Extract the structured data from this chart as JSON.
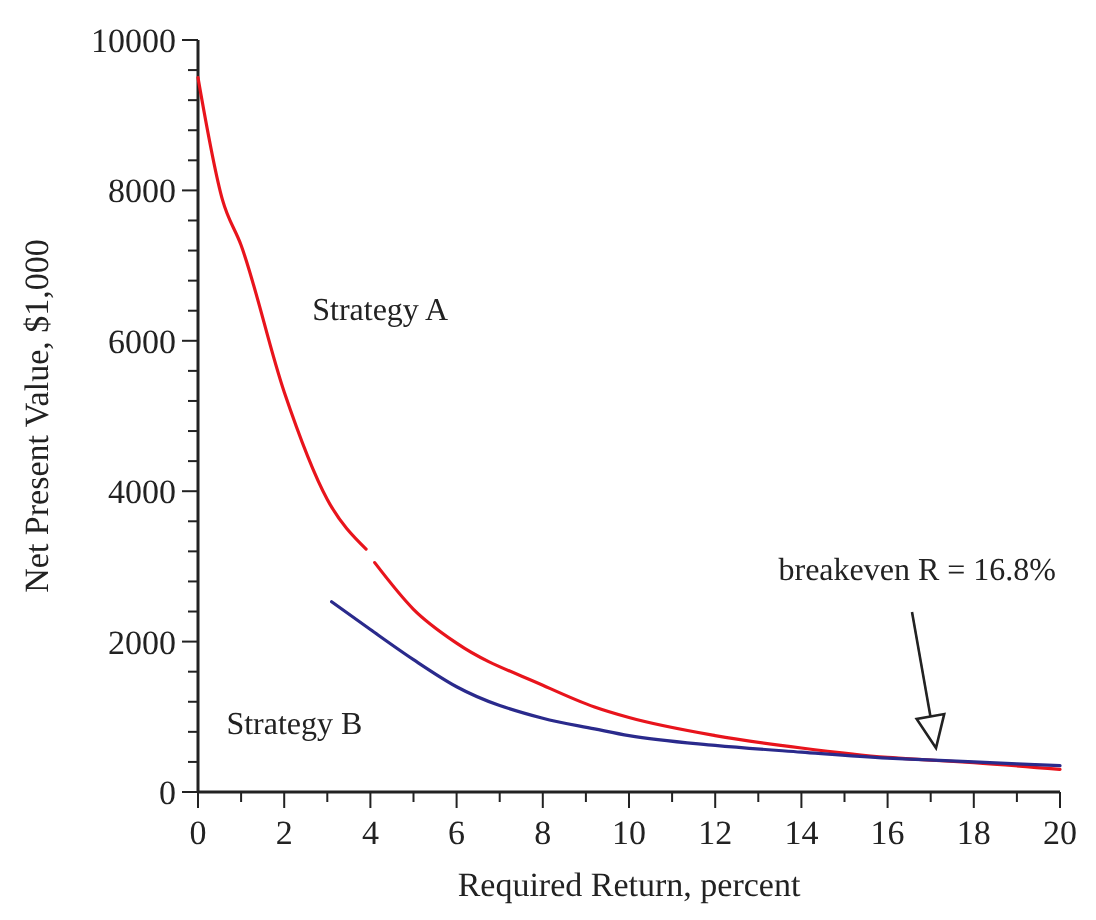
{
  "chart_data": {
    "type": "line",
    "xlabel": "Required Return, percent",
    "ylabel": "Net Present Value, $1,000",
    "xlim": [
      0,
      20
    ],
    "xticks": [
      0,
      {
        "value": 1,
        "label": null
      },
      2,
      {
        "value": 3,
        "label": null
      },
      4,
      {
        "value": 5,
        "label": null
      },
      6,
      {
        "value": 7,
        "label": null
      },
      8,
      {
        "value": 9,
        "label": null
      },
      10,
      {
        "value": 11,
        "label": null
      },
      12,
      {
        "value": 13,
        "label": null
      },
      14,
      {
        "value": 15,
        "label": null
      },
      16,
      {
        "value": 17,
        "label": null
      },
      18,
      {
        "value": 19,
        "label": null
      },
      20
    ],
    "ylim": [
      0,
      10000
    ],
    "yticks": [
      0,
      {
        "value": 400,
        "label": null
      },
      {
        "value": 800,
        "label": null
      },
      {
        "value": 1200,
        "label": null
      },
      {
        "value": 1600,
        "label": null
      },
      2000,
      {
        "value": 2400,
        "label": null
      },
      {
        "value": 2800,
        "label": null
      },
      {
        "value": 3200,
        "label": null
      },
      {
        "value": 3600,
        "label": null
      },
      4000,
      {
        "value": 4400,
        "label": null
      },
      {
        "value": 4800,
        "label": null
      },
      {
        "value": 5200,
        "label": null
      },
      {
        "value": 5600,
        "label": null
      },
      6000,
      {
        "value": 6400,
        "label": null
      },
      {
        "value": 6800,
        "label": null
      },
      {
        "value": 7200,
        "label": null
      },
      {
        "value": 7600,
        "label": null
      },
      8000,
      {
        "value": 8400,
        "label": null
      },
      {
        "value": 8800,
        "label": null
      },
      {
        "value": 9200,
        "label": null
      },
      {
        "value": 9600,
        "label": null
      },
      10000
    ],
    "grid": false,
    "line_style": "solid",
    "marker": "none",
    "series": [
      {
        "name": "Strategy A",
        "color": "#e8141c",
        "x": [
          0,
          0.57,
          1,
          2,
          3,
          3.9,
          4,
          4.1,
          5,
          6,
          8,
          9.2,
          10,
          12,
          14,
          16,
          16.8,
          18,
          20
        ],
        "values": [
          9500,
          7870,
          7270,
          5320,
          3890,
          3230,
          null,
          3050,
          2430,
          1980,
          1420,
          1130,
          990,
          750,
          585,
          460,
          430,
          390,
          300
        ]
      },
      {
        "name": "Strategy B",
        "color": "#2a2a8c",
        "x": [
          3.1,
          4,
          5,
          6,
          8,
          9.2,
          10,
          12,
          14,
          16,
          16.8,
          18,
          20
        ],
        "values": [
          2530,
          2160,
          1760,
          1400,
          980,
          840,
          750,
          620,
          530,
          450,
          430,
          400,
          350
        ]
      }
    ],
    "annotations": [
      "breakeven R = 16.8%"
    ]
  }
}
